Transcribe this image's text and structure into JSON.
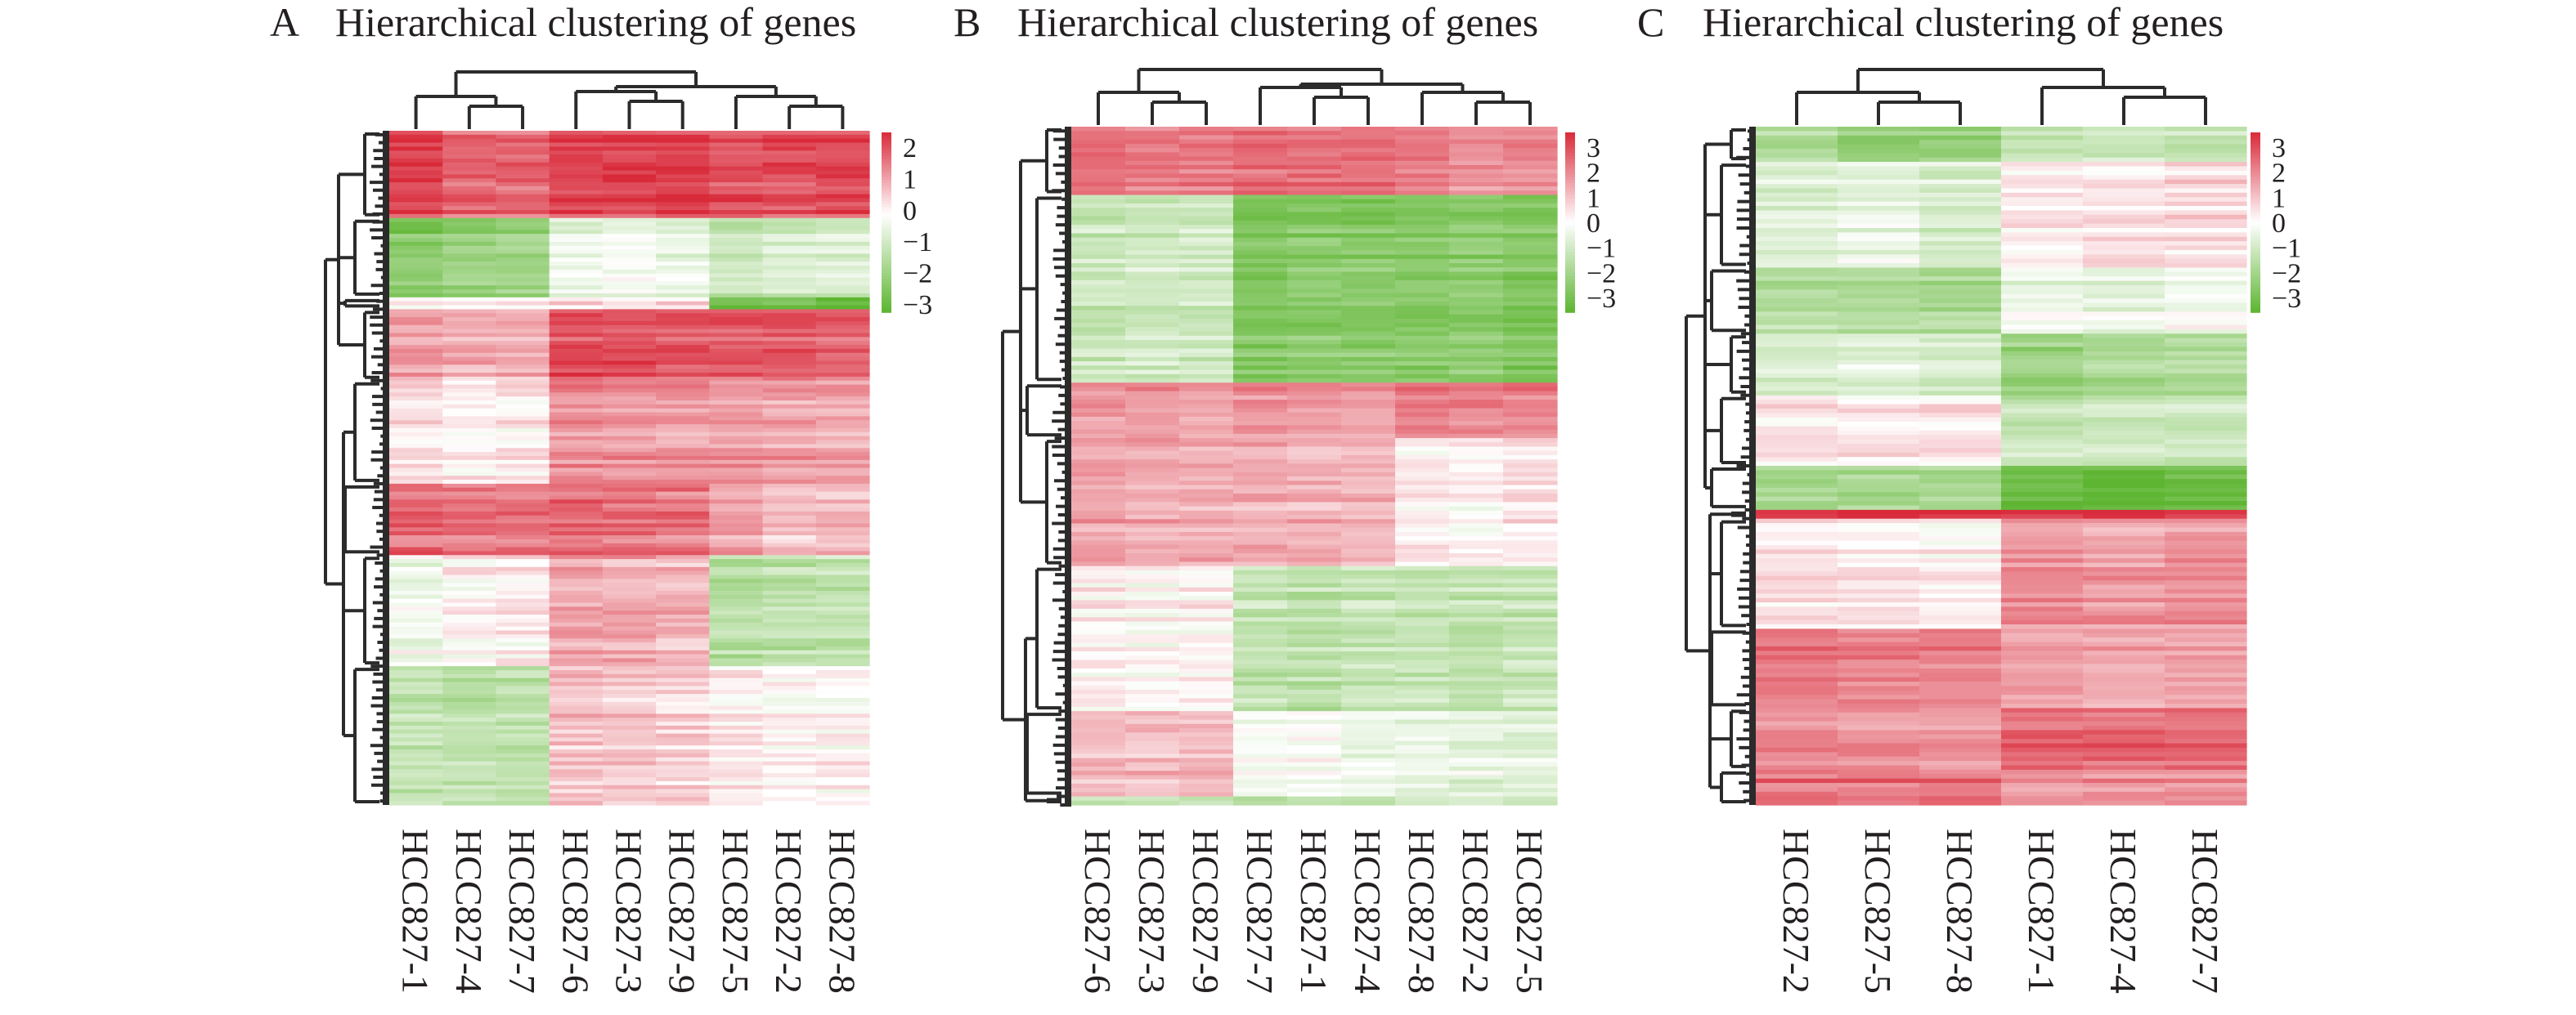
{
  "chart_data": [
    {
      "type": "heatmap",
      "panel": "A",
      "title": "Hierarchical clustering of genes",
      "columns": [
        "HCC827-1",
        "HCC827-4",
        "HCC827-7",
        "HCC827-6",
        "HCC827-3",
        "HCC827-9",
        "HCC827-5",
        "HCC827-2",
        "HCC827-8"
      ],
      "colorbar": {
        "ticks": [
          "2",
          "1",
          "0",
          "−1",
          "−2",
          "−3"
        ],
        "range": [
          -3,
          2.5
        ]
      },
      "column_groups": [
        [
          0,
          1,
          2
        ],
        [
          3,
          4,
          5
        ],
        [
          6,
          7,
          8
        ]
      ],
      "row_blocks": [
        {
          "rows": 22,
          "values": [
            2.2,
            1.8,
            1.8,
            2.2,
            2.2,
            2.2,
            2.0,
            2.0,
            2.1
          ]
        },
        {
          "rows": 20,
          "values": [
            -2.2,
            -2.0,
            -1.8,
            -0.4,
            -0.3,
            -0.5,
            -1.0,
            -0.8,
            -0.7
          ]
        },
        {
          "rows": 3,
          "values": [
            0.3,
            0.2,
            0.1,
            0.5,
            0.4,
            0.4,
            -2.5,
            -2.5,
            -2.8
          ]
        },
        {
          "rows": 18,
          "values": [
            1.0,
            0.9,
            0.9,
            2.0,
            2.0,
            1.9,
            1.9,
            1.9,
            1.8
          ]
        },
        {
          "rows": 26,
          "values": [
            0.4,
            0.2,
            0.3,
            1.3,
            1.2,
            1.2,
            1.2,
            1.1,
            1.0
          ]
        },
        {
          "rows": 18,
          "values": [
            1.7,
            1.5,
            1.6,
            1.7,
            1.6,
            1.6,
            1.0,
            0.7,
            0.8
          ]
        },
        {
          "rows": 28,
          "values": [
            -0.3,
            0.1,
            0.2,
            1.0,
            1.0,
            0.9,
            -1.3,
            -1.2,
            -1.1
          ]
        },
        {
          "rows": 35,
          "values": [
            -1.1,
            -1.2,
            -1.2,
            0.7,
            0.6,
            0.5,
            0.2,
            0.1,
            0.1
          ]
        }
      ]
    },
    {
      "type": "heatmap",
      "panel": "B",
      "title": "Hierarchical clustering of genes",
      "columns": [
        "HCC827-6",
        "HCC827-3",
        "HCC827-9",
        "HCC827-7",
        "HCC827-1",
        "HCC827-4",
        "HCC827-8",
        "HCC827-2",
        "HCC827-5"
      ],
      "colorbar": {
        "ticks": [
          "3",
          "2",
          "1",
          "0",
          "−1",
          "−2",
          "−3"
        ],
        "range": [
          -3,
          3
        ]
      },
      "column_groups": [
        [
          0,
          1,
          2
        ],
        [
          3,
          4,
          5
        ],
        [
          6,
          7,
          8
        ]
      ],
      "row_blocks": [
        {
          "rows": 16,
          "values": [
            2.0,
            1.8,
            1.8,
            2.0,
            2.0,
            2.0,
            1.8,
            1.5,
            1.6
          ]
        },
        {
          "rows": 44,
          "values": [
            -1.0,
            -0.9,
            -0.9,
            -2.3,
            -2.2,
            -2.2,
            -2.2,
            -2.1,
            -2.3
          ]
        },
        {
          "rows": 13,
          "values": [
            1.5,
            1.5,
            1.4,
            1.6,
            1.5,
            1.4,
            1.9,
            1.8,
            1.8
          ]
        },
        {
          "rows": 30,
          "values": [
            1.3,
            1.2,
            1.2,
            1.2,
            1.1,
            1.1,
            0.3,
            0.2,
            0.4
          ]
        },
        {
          "rows": 34,
          "values": [
            0.2,
            0.1,
            0.2,
            -1.1,
            -1.2,
            -1.0,
            -1.0,
            -1.1,
            -1.0
          ]
        },
        {
          "rows": 20,
          "values": [
            1.0,
            0.9,
            1.0,
            -0.2,
            -0.1,
            -0.3,
            -0.4,
            -0.5,
            -0.6
          ]
        },
        {
          "rows": 2,
          "values": [
            -1.0,
            -1.1,
            -1.0,
            -1.3,
            -1.3,
            -1.2,
            -0.8,
            -0.7,
            -0.7
          ]
        }
      ]
    },
    {
      "type": "heatmap",
      "panel": "C",
      "title": "Hierarchical clustering of genes",
      "columns": [
        "HCC827-2",
        "HCC827-5",
        "HCC827-8",
        "HCC827-1",
        "HCC827-4",
        "HCC827-7"
      ],
      "colorbar": {
        "ticks": [
          "3",
          "2",
          "1",
          "0",
          "−1",
          "−2",
          "−3"
        ],
        "range": [
          -3,
          3
        ]
      },
      "column_groups": [
        [
          0,
          1,
          2
        ],
        [
          3,
          4,
          5
        ]
      ],
      "row_blocks": [
        {
          "rows": 8,
          "values": [
            -1.5,
            -2.0,
            -2.0,
            -1.0,
            -1.0,
            -1.1
          ]
        },
        {
          "rows": 24,
          "values": [
            -0.6,
            -0.4,
            -0.8,
            0.3,
            0.4,
            0.5
          ]
        },
        {
          "rows": 15,
          "values": [
            -1.4,
            -1.5,
            -1.5,
            -0.3,
            -0.4,
            -0.2
          ]
        },
        {
          "rows": 14,
          "values": [
            -0.8,
            -0.6,
            -0.8,
            -1.8,
            -1.6,
            -1.5
          ]
        },
        {
          "rows": 16,
          "values": [
            0.4,
            0.3,
            0.3,
            -1.0,
            -1.0,
            -0.9
          ]
        },
        {
          "rows": 10,
          "values": [
            -1.5,
            -1.4,
            -1.5,
            -2.6,
            -2.7,
            -2.6
          ]
        },
        {
          "rows": 2,
          "values": [
            3.0,
            3.0,
            3.0,
            3.0,
            3.0,
            3.0
          ]
        },
        {
          "rows": 25,
          "values": [
            0.4,
            0.3,
            0.2,
            1.5,
            1.4,
            1.5
          ]
        },
        {
          "rows": 18,
          "values": [
            1.8,
            1.7,
            1.7,
            1.3,
            1.2,
            1.3
          ]
        },
        {
          "rows": 14,
          "values": [
            1.6,
            1.5,
            1.4,
            2.1,
            2.1,
            2.1
          ]
        },
        {
          "rows": 8,
          "values": [
            2.0,
            2.0,
            1.9,
            1.6,
            1.6,
            1.6
          ]
        }
      ]
    }
  ],
  "colors": {
    "high": "#d92a3a",
    "mid": "#ffffff",
    "low": "#5db531",
    "line": "#2b2b2b"
  }
}
